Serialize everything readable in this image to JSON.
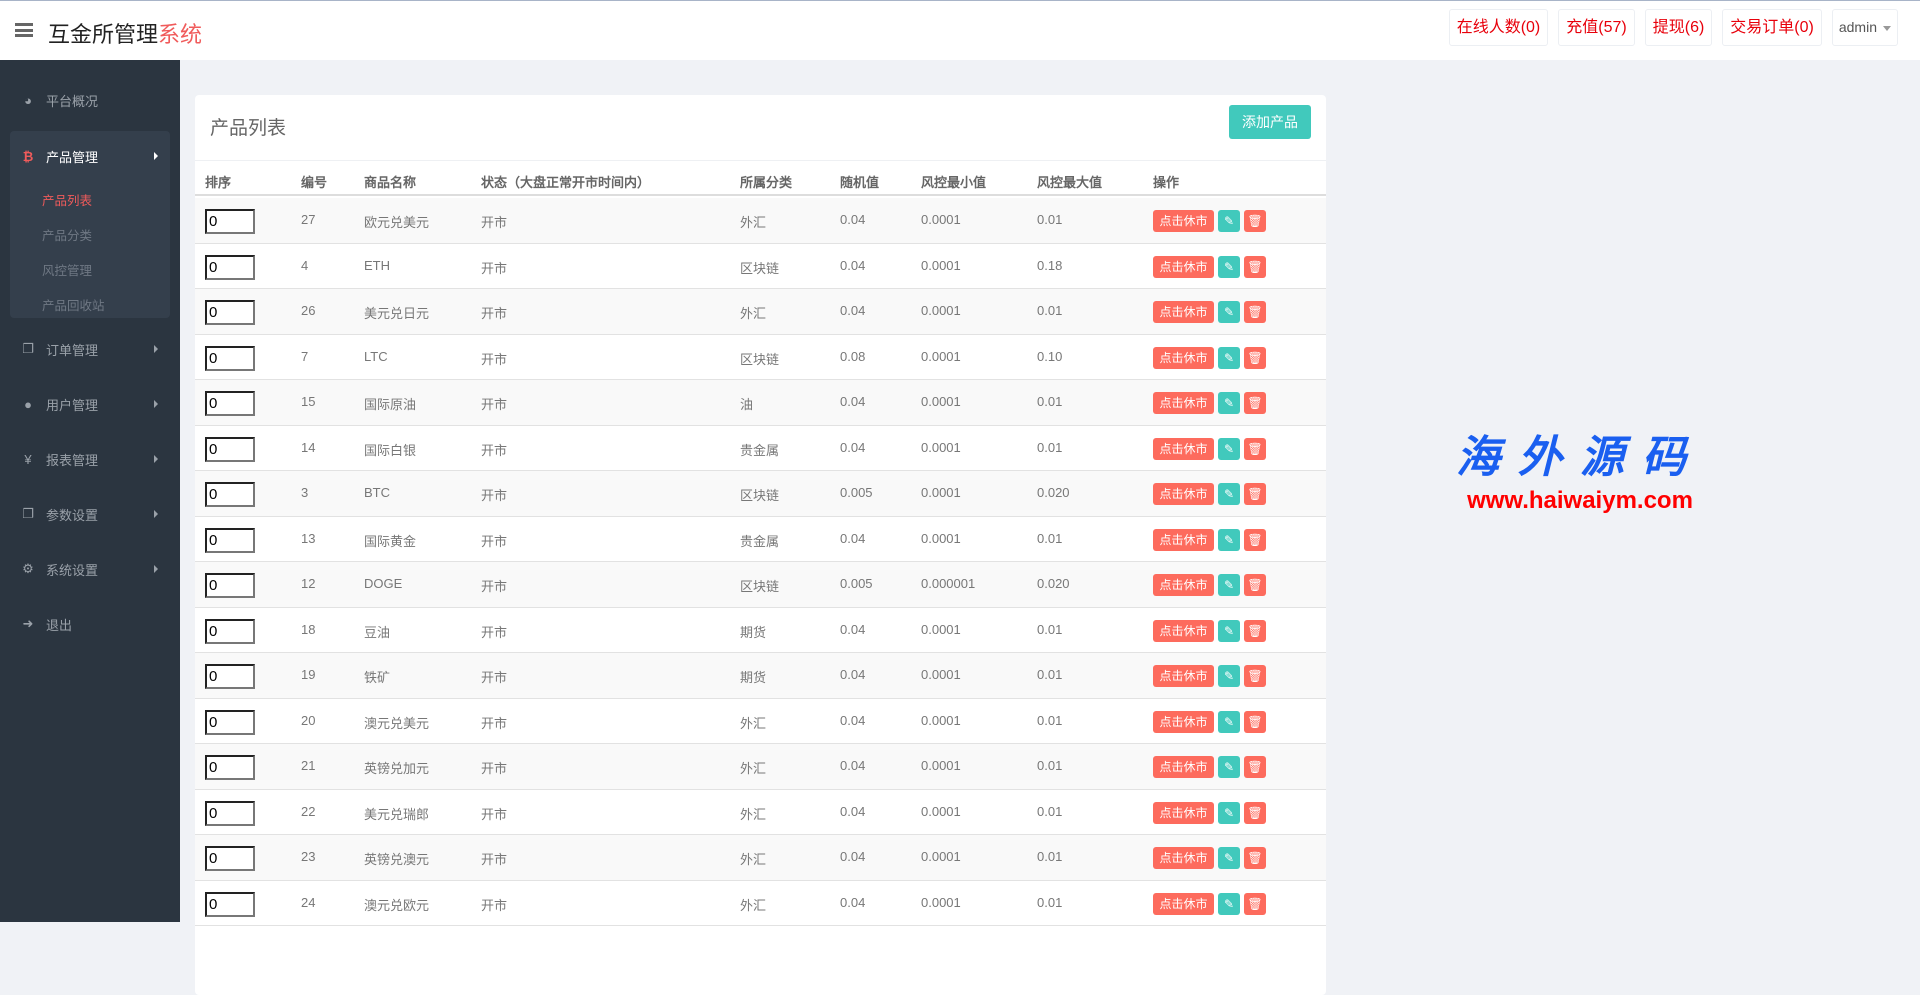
{
  "header": {
    "brand_main": "互金所管理",
    "brand_accent": "系统",
    "buttons": [
      {
        "label": "在线人数(0)"
      },
      {
        "label": "充值(57)"
      },
      {
        "label": "提现(6)"
      },
      {
        "label": "交易订单(0)"
      }
    ],
    "user": "admin"
  },
  "sidebar": {
    "items": [
      {
        "label": "平台概况",
        "icon": "dashboard-icon"
      },
      {
        "label": "产品管理",
        "icon": "bitcoin-icon"
      },
      {
        "label": "订单管理",
        "icon": "files-icon"
      },
      {
        "label": "用户管理",
        "icon": "user-icon"
      },
      {
        "label": "报表管理",
        "icon": "yen-icon"
      },
      {
        "label": "参数设置",
        "icon": "files-icon"
      },
      {
        "label": "系统设置",
        "icon": "gears-icon"
      },
      {
        "label": "退出",
        "icon": "sign-out-icon"
      }
    ],
    "submenu": [
      {
        "label": "产品列表",
        "active": true
      },
      {
        "label": "产品分类"
      },
      {
        "label": "风控管理"
      },
      {
        "label": "产品回收站"
      }
    ]
  },
  "main": {
    "title": "产品列表",
    "add_label": "添加产品",
    "columns": [
      "排序",
      "编号",
      "商品名称",
      "状态（大盘正常开市时间内）",
      "所属分类",
      "随机值",
      "风控最小值",
      "风控最大值",
      "操作"
    ],
    "action_close": "点击休市",
    "action_close_color": "#fd6b5d",
    "action_edit_color": "#41c9bc",
    "rows": [
      {
        "sort": "0",
        "id": "27",
        "name": "欧元兑美元",
        "status": "开市",
        "category": "外汇",
        "random": "0.04",
        "min": "0.0001",
        "max": "0.01"
      },
      {
        "sort": "0",
        "id": "4",
        "name": "ETH",
        "status": "开市",
        "category": "区块链",
        "random": "0.04",
        "min": "0.0001",
        "max": "0.18"
      },
      {
        "sort": "0",
        "id": "26",
        "name": "美元兑日元",
        "status": "开市",
        "category": "外汇",
        "random": "0.04",
        "min": "0.0001",
        "max": "0.01"
      },
      {
        "sort": "0",
        "id": "7",
        "name": "LTC",
        "status": "开市",
        "category": "区块链",
        "random": "0.08",
        "min": "0.0001",
        "max": "0.10"
      },
      {
        "sort": "0",
        "id": "15",
        "name": "国际原油",
        "status": "开市",
        "category": "油",
        "random": "0.04",
        "min": "0.0001",
        "max": "0.01"
      },
      {
        "sort": "0",
        "id": "14",
        "name": "国际白银",
        "status": "开市",
        "category": "贵金属",
        "random": "0.04",
        "min": "0.0001",
        "max": "0.01"
      },
      {
        "sort": "0",
        "id": "3",
        "name": "BTC",
        "status": "开市",
        "category": "区块链",
        "random": "0.005",
        "min": "0.0001",
        "max": "0.020"
      },
      {
        "sort": "0",
        "id": "13",
        "name": "国际黄金",
        "status": "开市",
        "category": "贵金属",
        "random": "0.04",
        "min": "0.0001",
        "max": "0.01"
      },
      {
        "sort": "0",
        "id": "12",
        "name": "DOGE",
        "status": "开市",
        "category": "区块链",
        "random": "0.005",
        "min": "0.000001",
        "max": "0.020"
      },
      {
        "sort": "0",
        "id": "18",
        "name": "豆油",
        "status": "开市",
        "category": "期货",
        "random": "0.04",
        "min": "0.0001",
        "max": "0.01"
      },
      {
        "sort": "0",
        "id": "19",
        "name": "铁矿",
        "status": "开市",
        "category": "期货",
        "random": "0.04",
        "min": "0.0001",
        "max": "0.01"
      },
      {
        "sort": "0",
        "id": "20",
        "name": "澳元兑美元",
        "status": "开市",
        "category": "外汇",
        "random": "0.04",
        "min": "0.0001",
        "max": "0.01"
      },
      {
        "sort": "0",
        "id": "21",
        "name": "英镑兑加元",
        "status": "开市",
        "category": "外汇",
        "random": "0.04",
        "min": "0.0001",
        "max": "0.01"
      },
      {
        "sort": "0",
        "id": "22",
        "name": "美元兑瑞郎",
        "status": "开市",
        "category": "外汇",
        "random": "0.04",
        "min": "0.0001",
        "max": "0.01"
      },
      {
        "sort": "0",
        "id": "23",
        "name": "英镑兑澳元",
        "status": "开市",
        "category": "外汇",
        "random": "0.04",
        "min": "0.0001",
        "max": "0.01"
      },
      {
        "sort": "0",
        "id": "24",
        "name": "澳元兑欧元",
        "status": "开市",
        "category": "外汇",
        "random": "0.04",
        "min": "0.0001",
        "max": "0.01"
      }
    ]
  },
  "watermark": {
    "cn": "海外源码",
    "url": "www.haiwaiym.com"
  }
}
